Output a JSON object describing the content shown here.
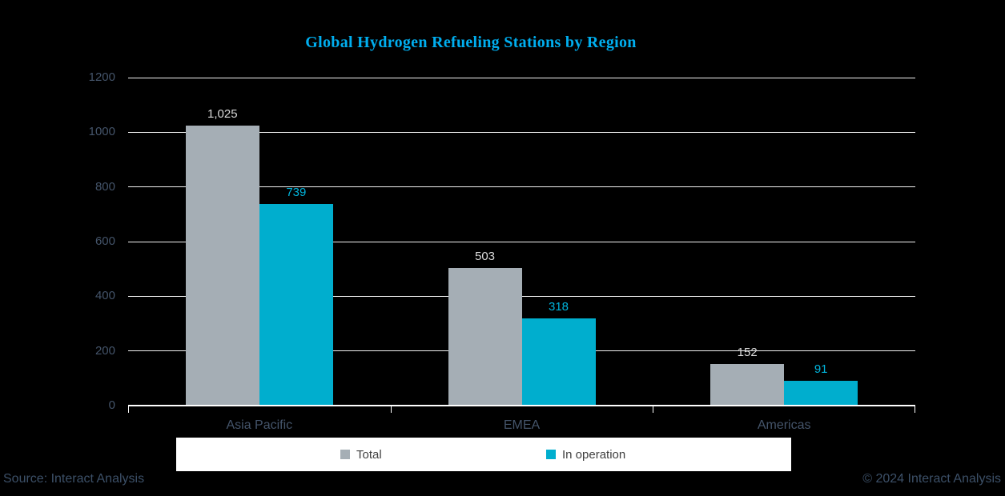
{
  "title": "Global Hydrogen Refueling Stations by Region",
  "footer": {
    "source": "Source: Interact Analysis",
    "copyright": "© 2024 Interact Analysis"
  },
  "colors": {
    "background": "#000000",
    "title": "#00AEEF",
    "gridline": "#F2F2F2",
    "axis_line": "#FFFFFF",
    "axis_text": "#44546A",
    "legend_bg": "#FFFFFF",
    "legend_text": "#3F3F3F"
  },
  "chart_data": {
    "type": "bar",
    "title": "Global Hydrogen Refueling Stations by Region",
    "categories": [
      "Asia Pacific",
      "EMEA",
      "Americas"
    ],
    "series": [
      {
        "name": "Total",
        "values": [
          1025,
          503,
          152
        ],
        "color": "#A5AEB5",
        "label_color": "#D9D9D9"
      },
      {
        "name": "In operation",
        "values": [
          739,
          318,
          91
        ],
        "color": "#00AECE",
        "label_color": "#00B4DC"
      }
    ],
    "xlabel": "",
    "ylabel": "",
    "ylim": [
      0,
      1200
    ],
    "ytick_step": 200,
    "grid": true,
    "legend_position": "bottom"
  }
}
